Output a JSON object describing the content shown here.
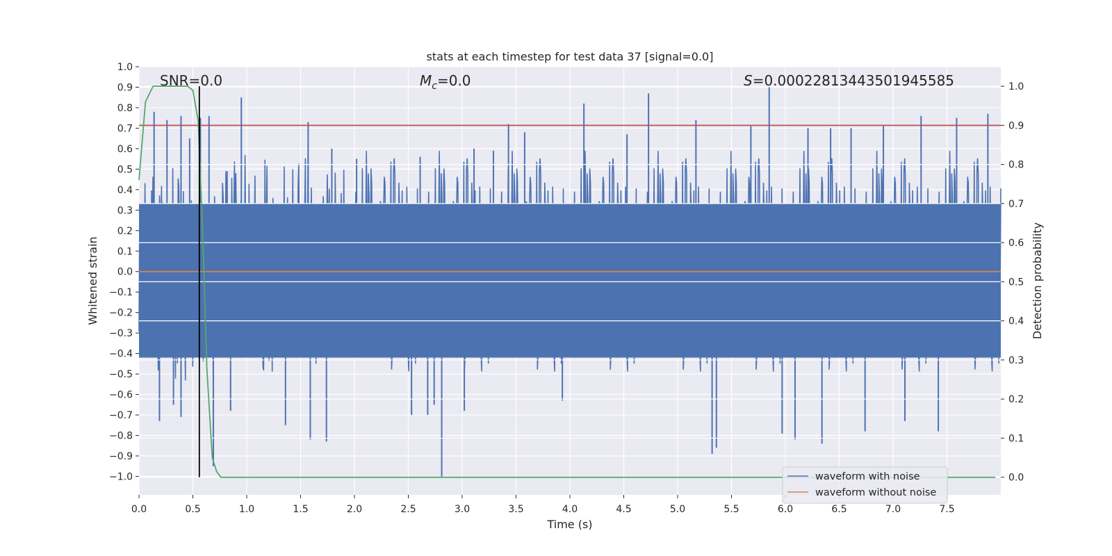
{
  "chart_data": {
    "type": "line",
    "title": "stats at each timestep for test data 37 [signal=0.0]",
    "xlabel": "Time (s)",
    "ylabel": "Whitened strain",
    "ylabel_right": "Detection probability",
    "xlim": [
      0.0,
      8.0
    ],
    "ylim": [
      -1.09,
      1.0
    ],
    "ylim_right": [
      -0.045,
      1.05
    ],
    "xticks": [
      0.0,
      0.5,
      1.0,
      1.5,
      2.0,
      2.5,
      3.0,
      3.5,
      4.0,
      4.5,
      5.0,
      5.5,
      6.0,
      6.5,
      7.0,
      7.5
    ],
    "xtick_labels": [
      "0.0",
      "0.5",
      "1.0",
      "1.5",
      "2.0",
      "2.5",
      "3.0",
      "3.5",
      "4.0",
      "4.5",
      "5.0",
      "5.5",
      "6.0",
      "6.5",
      "7.0",
      "7.5"
    ],
    "yticks": [
      1.0,
      0.9,
      0.8,
      0.7,
      0.6,
      0.5,
      0.4,
      0.3,
      0.2,
      0.1,
      0.0,
      -0.1,
      -0.2,
      -0.3,
      -0.4,
      -0.5,
      -0.6,
      -0.7,
      -0.8,
      -0.9,
      -1.0
    ],
    "ytick_labels": [
      "1.0",
      "0.9",
      "0.8",
      "0.7",
      "0.6",
      "0.5",
      "0.4",
      "0.3",
      "0.2",
      "0.1",
      "0.0",
      "−0.1",
      "−0.2",
      "−0.3",
      "−0.4",
      "−0.5",
      "−0.6",
      "−0.7",
      "−0.8",
      "−0.9",
      "−1.0"
    ],
    "yticks_right": [
      1.0,
      0.9,
      0.8,
      0.7,
      0.6,
      0.5,
      0.4,
      0.3,
      0.2,
      0.1,
      0.0
    ],
    "ytick_labels_right": [
      "1.0",
      "0.9",
      "0.8",
      "0.7",
      "0.6",
      "0.5",
      "0.4",
      "0.3",
      "0.2",
      "0.1",
      "0.0"
    ],
    "grid": true,
    "legend_position": "lower-right",
    "annotations": {
      "snr": "SNR=0.0",
      "mc_symbol": "M",
      "mc_sub": "c",
      "mc_value": "=0.0",
      "s_symbol": "S",
      "s_value": "=0.00022813443501945585"
    },
    "series": [
      {
        "name": "waveform with noise",
        "axis": "left",
        "color": "#4c72b0",
        "noise_amplitude_typical": 0.45,
        "peak_max": 0.9,
        "peak_min": -1.0,
        "peaks": [
          {
            "x": 0.14,
            "y": 0.78
          },
          {
            "x": 0.19,
            "y": -0.73
          },
          {
            "x": 0.26,
            "y": 0.74
          },
          {
            "x": 0.32,
            "y": -0.65
          },
          {
            "x": 0.39,
            "y": 0.76
          },
          {
            "x": 0.39,
            "y": -0.71
          },
          {
            "x": 0.47,
            "y": 0.65
          },
          {
            "x": 0.57,
            "y": 0.75
          },
          {
            "x": 0.65,
            "y": 0.76
          },
          {
            "x": 0.69,
            "y": -0.95
          },
          {
            "x": 0.85,
            "y": -0.68
          },
          {
            "x": 0.95,
            "y": 0.85
          },
          {
            "x": 1.36,
            "y": -0.75
          },
          {
            "x": 1.57,
            "y": 0.73
          },
          {
            "x": 1.59,
            "y": -0.82
          },
          {
            "x": 1.74,
            "y": -0.83
          },
          {
            "x": 1.79,
            "y": 0.6
          },
          {
            "x": 2.02,
            "y": 0.55
          },
          {
            "x": 2.53,
            "y": -0.7
          },
          {
            "x": 2.61,
            "y": 0.56
          },
          {
            "x": 2.68,
            "y": -0.7
          },
          {
            "x": 2.74,
            "y": -0.65
          },
          {
            "x": 2.81,
            "y": -1.0
          },
          {
            "x": 2.83,
            "y": 0.48
          },
          {
            "x": 3.02,
            "y": -0.68
          },
          {
            "x": 3.11,
            "y": 0.6
          },
          {
            "x": 3.29,
            "y": 0.59
          },
          {
            "x": 3.43,
            "y": 0.72
          },
          {
            "x": 3.58,
            "y": 0.68
          },
          {
            "x": 3.93,
            "y": -0.63
          },
          {
            "x": 4.13,
            "y": 0.82
          },
          {
            "x": 4.53,
            "y": 0.67
          },
          {
            "x": 4.73,
            "y": 0.87
          },
          {
            "x": 5.17,
            "y": 0.74
          },
          {
            "x": 5.32,
            "y": -0.89
          },
          {
            "x": 5.36,
            "y": -0.86
          },
          {
            "x": 5.68,
            "y": 0.71
          },
          {
            "x": 5.85,
            "y": 0.9
          },
          {
            "x": 5.97,
            "y": -0.79
          },
          {
            "x": 6.09,
            "y": -0.82
          },
          {
            "x": 6.21,
            "y": 0.7
          },
          {
            "x": 6.34,
            "y": -0.84
          },
          {
            "x": 6.42,
            "y": 0.7
          },
          {
            "x": 6.61,
            "y": 0.7
          },
          {
            "x": 6.74,
            "y": -0.78
          },
          {
            "x": 6.91,
            "y": 0.71
          },
          {
            "x": 7.11,
            "y": -0.73
          },
          {
            "x": 7.26,
            "y": 0.76
          },
          {
            "x": 7.42,
            "y": -0.78
          },
          {
            "x": 7.59,
            "y": 0.75
          },
          {
            "x": 7.88,
            "y": 0.77
          }
        ]
      },
      {
        "name": "waveform without noise",
        "axis": "left",
        "color": "#dd8452",
        "x": [
          0.0,
          8.0
        ],
        "y": [
          0.0,
          0.0
        ]
      },
      {
        "axis": "right",
        "color": "#55a868",
        "x": [
          0.0,
          0.06,
          0.13,
          0.25,
          0.35,
          0.45,
          0.5,
          0.55,
          0.58,
          0.6,
          0.63,
          0.68,
          0.72,
          0.76,
          0.8,
          1.0,
          2.0,
          3.0,
          4.0,
          5.0,
          6.0,
          7.0,
          7.95
        ],
        "y": [
          0.76,
          0.96,
          1.0,
          1.0,
          1.0,
          1.0,
          0.99,
          0.91,
          0.7,
          0.55,
          0.28,
          0.05,
          0.015,
          0.0,
          0.0,
          0.0,
          0.0,
          0.0,
          0.0,
          0.0,
          0.0,
          0.0,
          0.0
        ]
      }
    ],
    "threshold_line": {
      "axis": "right",
      "value": 0.9,
      "color": "#c44e52"
    },
    "vertical_line": {
      "x": 0.56,
      "color": "#000000"
    }
  }
}
